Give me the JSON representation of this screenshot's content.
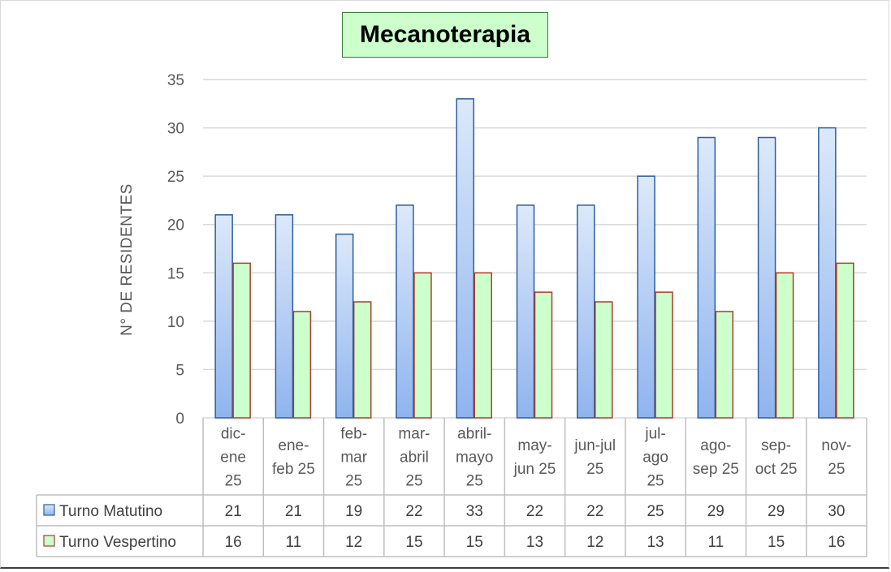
{
  "chart_data": {
    "type": "bar",
    "title": "Mecanoterapia",
    "ylabel": "N° DE RESIDENTES",
    "xlabel": "",
    "ylim": [
      0,
      35
    ],
    "yticks": [
      0,
      5,
      10,
      15,
      20,
      25,
      30,
      35
    ],
    "categories": [
      [
        "dic-",
        "ene",
        "25"
      ],
      [
        "ene-",
        "feb 25"
      ],
      [
        "feb-",
        "mar",
        "25"
      ],
      [
        "mar-",
        "abril",
        "25"
      ],
      [
        "abril-",
        "mayo",
        "25"
      ],
      [
        "may-",
        "jun 25"
      ],
      [
        "jun-jul",
        "25"
      ],
      [
        "jul-",
        "ago",
        "25"
      ],
      [
        "ago-",
        "sep 25"
      ],
      [
        "sep-",
        "oct 25"
      ],
      [
        "nov-",
        "25"
      ]
    ],
    "series": [
      {
        "name": "Turno Matutino",
        "values": [
          21,
          21,
          19,
          22,
          33,
          22,
          22,
          25,
          29,
          29,
          30
        ],
        "fill_top": "#dce9fa",
        "fill_bottom": "#8fb4ee",
        "stroke": "#2e5e9e"
      },
      {
        "name": "Turno Vespertino",
        "values": [
          16,
          11,
          12,
          15,
          15,
          13,
          12,
          13,
          11,
          15,
          16
        ],
        "fill_top": "#ccffcc",
        "fill_bottom": "#ccffcc",
        "stroke": "#b03a2e"
      }
    ],
    "grid": true,
    "legend": "data-table"
  },
  "colors": {
    "gridline": "#d9d9d9",
    "table_border": "#bfbfbf",
    "title_bg": "#ccffcc",
    "title_border": "#3a7a3a"
  }
}
